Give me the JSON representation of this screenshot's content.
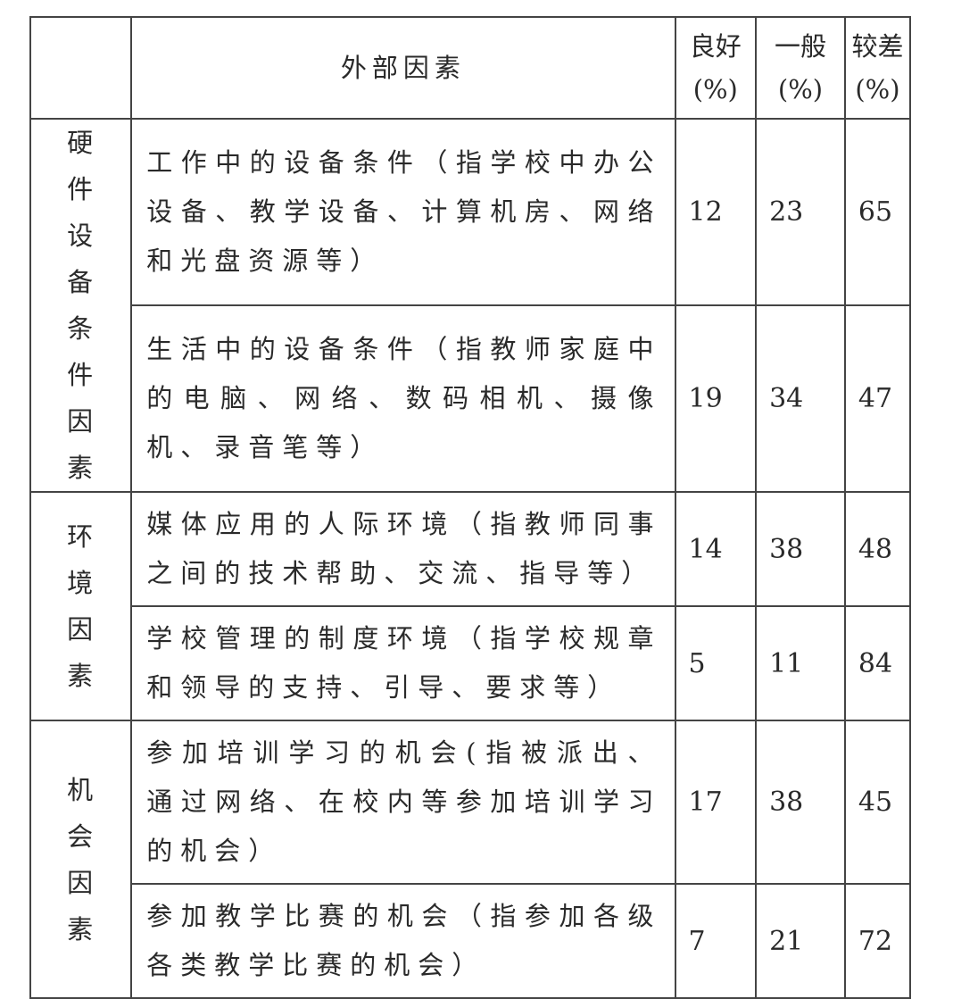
{
  "header": {
    "blank": "",
    "factor": "外部因素",
    "good": "良好",
    "average": "一般",
    "poor": "较差",
    "unit": "(%)"
  },
  "groups": [
    {
      "category": "硬件设备条件因素",
      "rows": [
        {
          "factor": "工作中的设备条件（指学校中办公设备、教学设备、计算机房、网络和光盘资源等）",
          "good": "12",
          "average": "23",
          "poor": "65"
        },
        {
          "factor": "生活中的设备条件（指教师家庭中的电脑、网络、数码相机、摄像机、录音笔等）",
          "good": "19",
          "average": "34",
          "poor": "47"
        }
      ]
    },
    {
      "category": "环境因素",
      "rows": [
        {
          "factor": "媒体应用的人际环境（指教师同事之间的技术帮助、交流、指导等）",
          "good": "14",
          "average": "38",
          "poor": "48"
        },
        {
          "factor": "学校管理的制度环境（指学校规章和领导的支持、引导、要求等）",
          "good": "5",
          "average": "11",
          "poor": "84"
        }
      ]
    },
    {
      "category": "机会因素",
      "rows": [
        {
          "factor": "参加培训学习的机会(指被派出、通过网络、在校内等参加培训学习的机会）",
          "good": "17",
          "average": "38",
          "poor": "45"
        },
        {
          "factor": "参加教学比赛的机会（指参加各级各类教学比赛的机会）",
          "good": "7",
          "average": "21",
          "poor": "72"
        }
      ]
    }
  ]
}
